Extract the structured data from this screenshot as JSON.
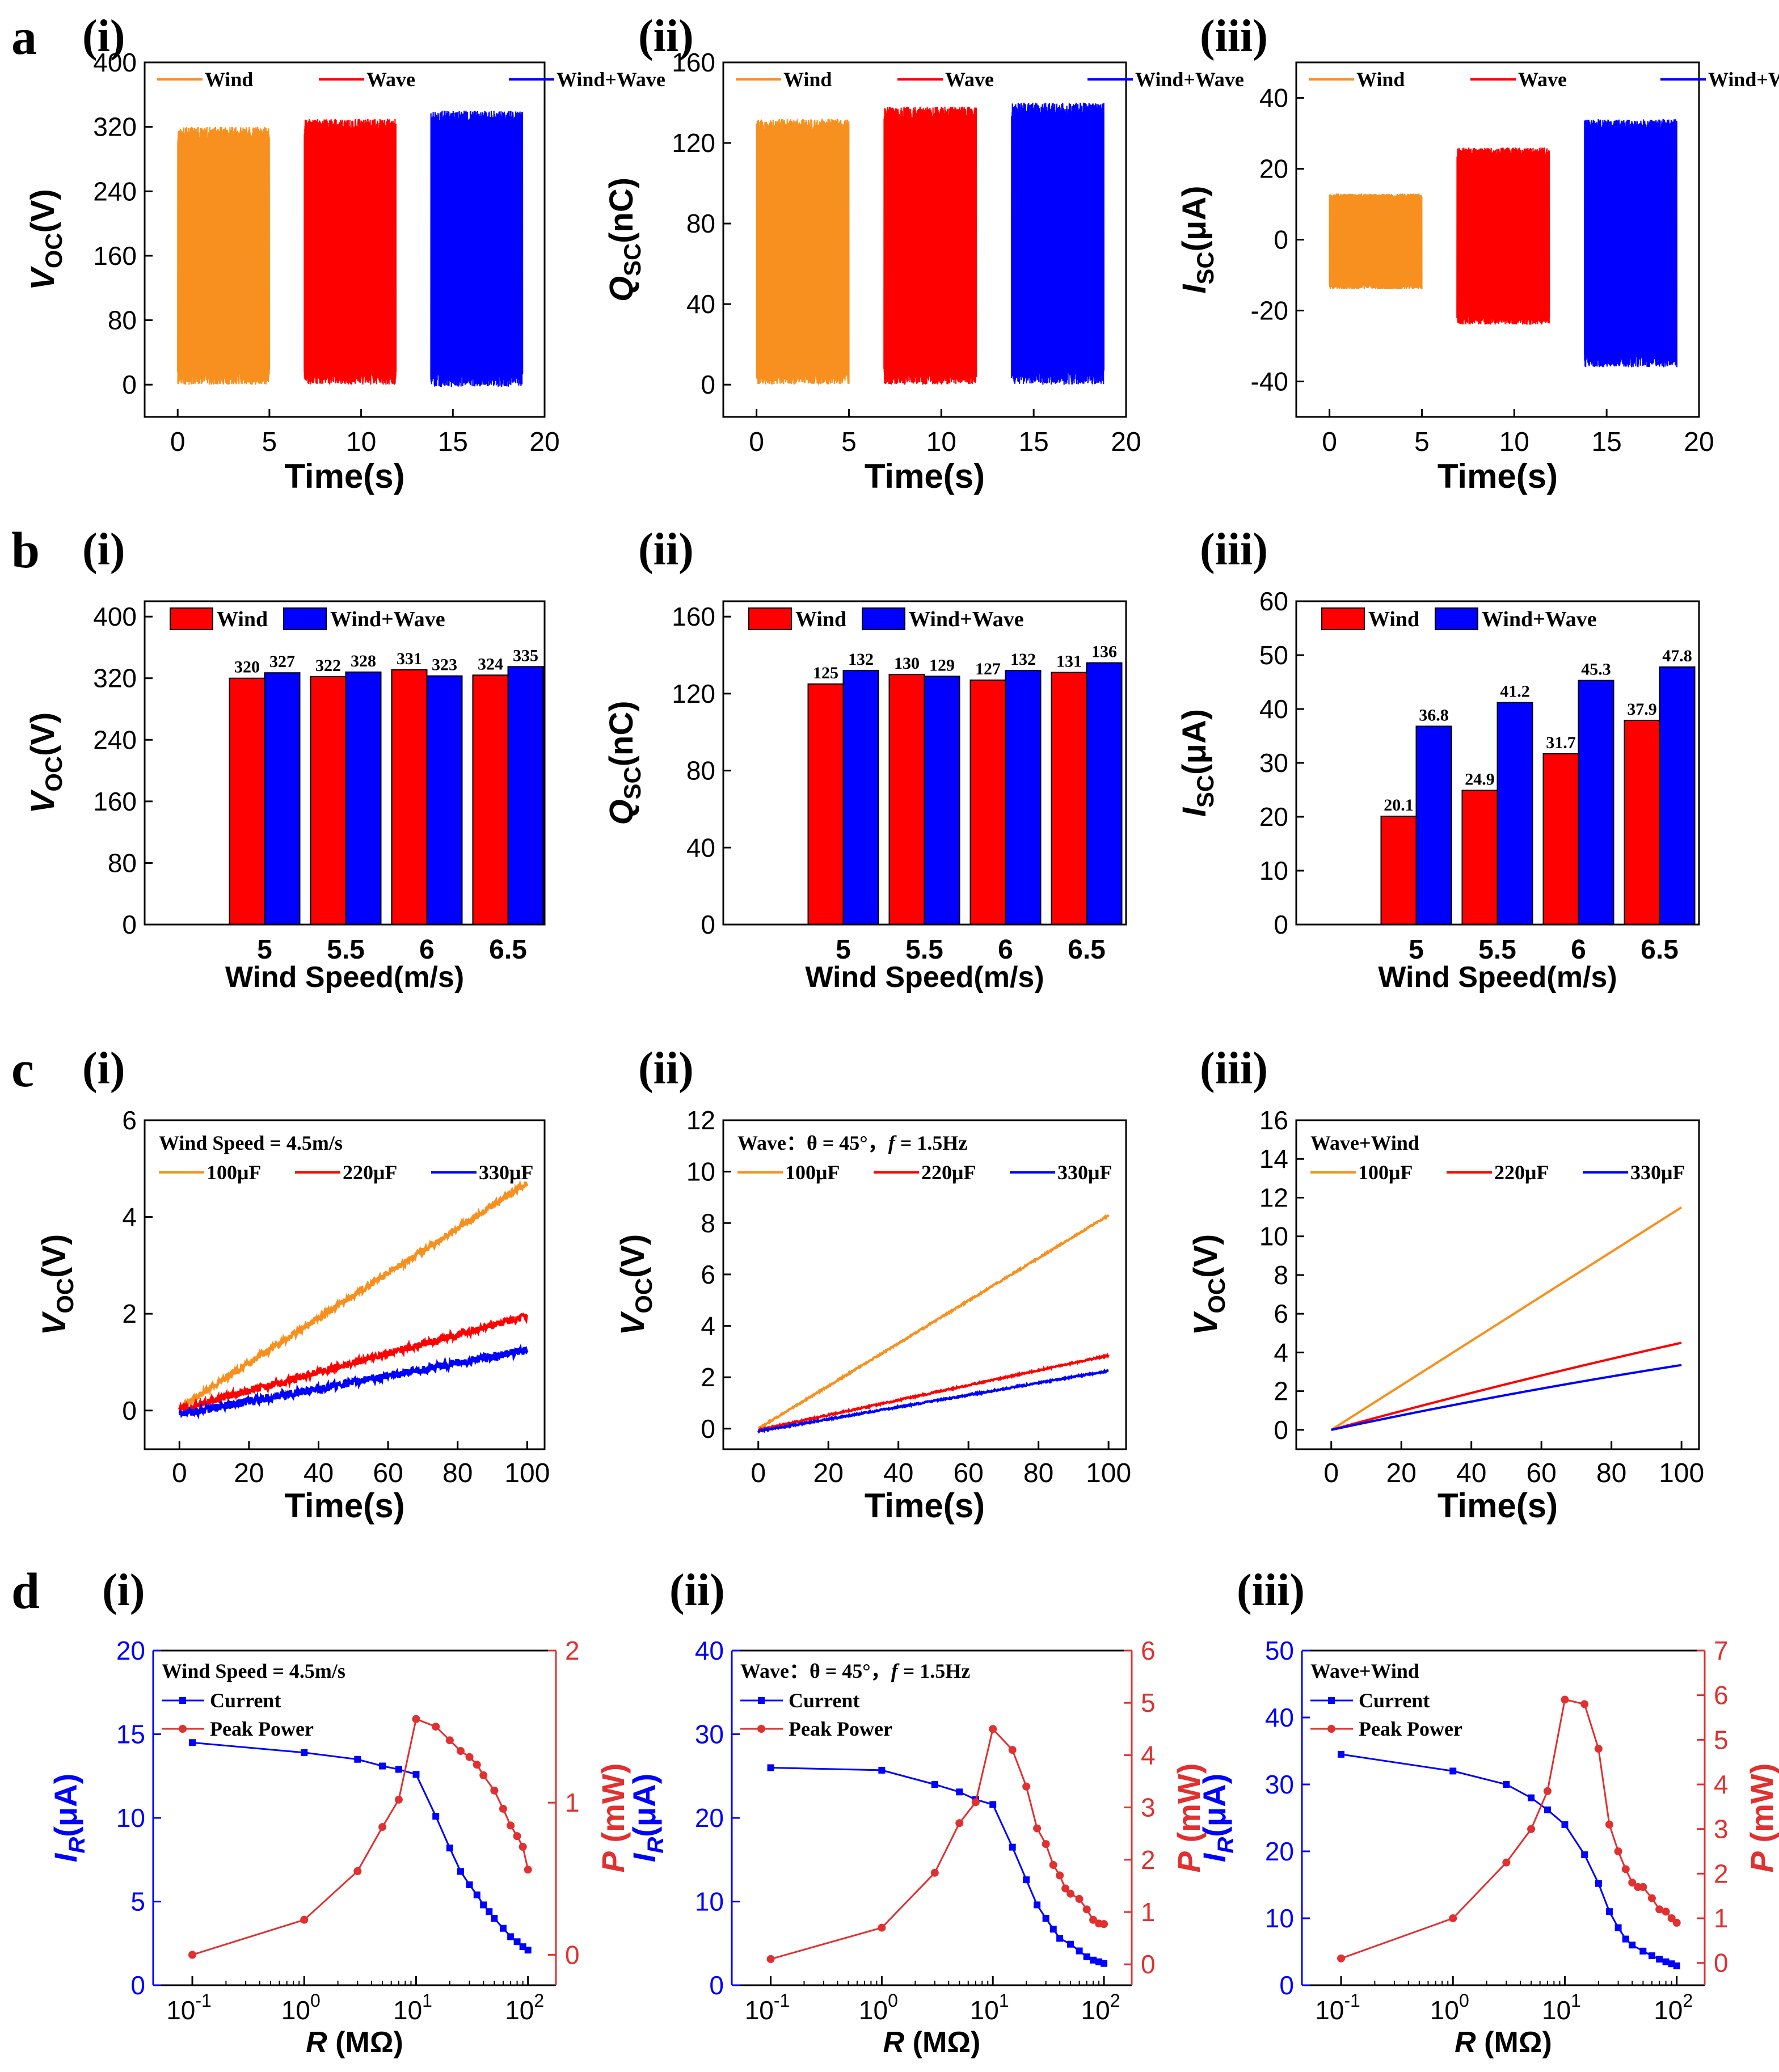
{
  "figure": {
    "panel_letters": [
      "a",
      "b",
      "c",
      "d"
    ],
    "sub_labels": [
      "(i)",
      "(ii)",
      "(iii)"
    ]
  },
  "colors": {
    "orange": "#F7901E",
    "red": "#FF0000",
    "blue": "#0000FF",
    "wind_bar": "#FF0000",
    "windwave_bar": "#0000FF",
    "current": "#0000FF",
    "power": "#E03030"
  },
  "chart_data": [
    {
      "id": "a-i",
      "type": "line",
      "title": "",
      "xlabel": "Time(s)",
      "ylabel": "V",
      "ylabel_sub": "OC",
      "ylabel_unit": "(V)",
      "xlim": [
        -1.8,
        20
      ],
      "ylim": [
        -40,
        400
      ],
      "xticks": [
        0,
        5,
        10,
        15,
        20
      ],
      "yticks": [
        0,
        80,
        160,
        240,
        320,
        400
      ],
      "legend": [
        "Wind",
        "Wave",
        "Wind+Wave"
      ],
      "series": [
        {
          "name": "Wind",
          "color": "orange",
          "t_start": 0,
          "t_end": 5,
          "min": 0,
          "max": 320
        },
        {
          "name": "Wave",
          "color": "red",
          "t_start": 6.9,
          "t_end": 11.9,
          "min": 0,
          "max": 330
        },
        {
          "name": "Wind+Wave",
          "color": "blue",
          "t_start": 13.8,
          "t_end": 18.8,
          "min": -3,
          "max": 340
        }
      ]
    },
    {
      "id": "a-ii",
      "type": "line",
      "xlabel": "Time(s)",
      "ylabel": "Q",
      "ylabel_sub": "SC",
      "ylabel_unit": "(nC)",
      "xlim": [
        -1.8,
        20
      ],
      "ylim": [
        -16,
        160
      ],
      "xticks": [
        0,
        5,
        10,
        15,
        20
      ],
      "yticks": [
        0,
        40,
        80,
        120,
        160
      ],
      "legend": [
        "Wind",
        "Wave",
        "Wind+Wave"
      ],
      "series": [
        {
          "name": "Wind",
          "color": "orange",
          "t_start": 0,
          "t_end": 5,
          "min": 0,
          "max": 132
        },
        {
          "name": "Wave",
          "color": "red",
          "t_start": 6.9,
          "t_end": 11.9,
          "min": 0,
          "max": 138
        },
        {
          "name": "Wind+Wave",
          "color": "blue",
          "t_start": 13.8,
          "t_end": 18.8,
          "min": 0,
          "max": 140
        }
      ]
    },
    {
      "id": "a-iii",
      "type": "line",
      "xlabel": "Time(s)",
      "ylabel": "I",
      "ylabel_sub": "SC",
      "ylabel_unit": "(μA)",
      "xlim": [
        -1.8,
        20
      ],
      "ylim": [
        -50,
        50
      ],
      "xticks": [
        0,
        5,
        10,
        15,
        20
      ],
      "yticks": [
        -40,
        -20,
        0,
        20,
        40
      ],
      "legend": [
        "Wind",
        "Wave",
        "Wind+Wave"
      ],
      "series": [
        {
          "name": "Wind",
          "color": "orange",
          "t_start": 0,
          "t_end": 5,
          "min": -14,
          "max": 13
        },
        {
          "name": "Wave",
          "color": "red",
          "t_start": 6.9,
          "t_end": 11.9,
          "min": -24,
          "max": 26
        },
        {
          "name": "Wind+Wave",
          "color": "blue",
          "t_start": 13.8,
          "t_end": 18.8,
          "min": -36,
          "max": 34
        }
      ]
    },
    {
      "id": "b-i",
      "type": "bar",
      "xlabel": "Wind Speed(m/s)",
      "ylabel": "V",
      "ylabel_sub": "OC",
      "ylabel_unit": "(V)",
      "ylim": [
        0,
        420
      ],
      "yticks": [
        0,
        80,
        160,
        240,
        320,
        400
      ],
      "categories": [
        "5",
        "5.5",
        "6",
        "6.5"
      ],
      "legend": [
        "Wind",
        "Wind+Wave"
      ],
      "series": [
        {
          "name": "Wind",
          "values": [
            320,
            322,
            331,
            324
          ]
        },
        {
          "name": "Wind+Wave",
          "values": [
            327,
            328,
            323,
            335
          ]
        }
      ]
    },
    {
      "id": "b-ii",
      "type": "bar",
      "xlabel": "Wind Speed(m/s)",
      "ylabel": "Q",
      "ylabel_sub": "SC",
      "ylabel_unit": "(nC)",
      "ylim": [
        0,
        168
      ],
      "yticks": [
        0,
        40,
        80,
        120,
        160
      ],
      "categories": [
        "5",
        "5.5",
        "6",
        "6.5"
      ],
      "legend": [
        "Wind",
        "Wind+Wave"
      ],
      "series": [
        {
          "name": "Wind",
          "values": [
            125,
            130,
            127,
            131
          ]
        },
        {
          "name": "Wind+Wave",
          "values": [
            132,
            129,
            132,
            136
          ]
        }
      ]
    },
    {
      "id": "b-iii",
      "type": "bar",
      "xlabel": "Wind Speed(m/s)",
      "ylabel": "I",
      "ylabel_sub": "SC",
      "ylabel_unit": "(μA)",
      "ylim": [
        0,
        60
      ],
      "yticks": [
        0,
        10,
        20,
        30,
        40,
        50,
        60
      ],
      "categories": [
        "5",
        "5.5",
        "6",
        "6.5"
      ],
      "legend": [
        "Wind",
        "Wind+Wave"
      ],
      "series": [
        {
          "name": "Wind",
          "values": [
            20.1,
            24.9,
            31.7,
            37.9
          ]
        },
        {
          "name": "Wind+Wave",
          "values": [
            36.8,
            41.2,
            45.3,
            47.8
          ]
        }
      ]
    },
    {
      "id": "c-i",
      "type": "line",
      "xlabel": "Time(s)",
      "ylabel": "V",
      "ylabel_sub": "OC",
      "ylabel_unit": "(V)",
      "xlim": [
        -10,
        105
      ],
      "ylim": [
        -0.8,
        6
      ],
      "xticks": [
        0,
        20,
        40,
        60,
        80,
        100
      ],
      "yticks": [
        0,
        2,
        4,
        6
      ],
      "annotation": "Wind Speed = 4.5m/s",
      "legend": [
        "100μF",
        "220μF",
        "330μF"
      ],
      "series": [
        {
          "name": "100μF",
          "color": "orange",
          "x": [
            0,
            100
          ],
          "y": [
            0.05,
            4.7
          ],
          "noise": 0.06
        },
        {
          "name": "220μF",
          "color": "red",
          "x": [
            0,
            100
          ],
          "y": [
            0.02,
            1.95
          ],
          "noise": 0.07
        },
        {
          "name": "330μF",
          "color": "blue",
          "x": [
            0,
            100
          ],
          "y": [
            -0.08,
            1.25
          ],
          "noise": 0.08
        }
      ]
    },
    {
      "id": "c-ii",
      "type": "line",
      "xlabel": "Time(s)",
      "ylabel": "V",
      "ylabel_sub": "OC",
      "ylabel_unit": "(V)",
      "xlim": [
        -10,
        105
      ],
      "ylim": [
        -0.8,
        12
      ],
      "xticks": [
        0,
        20,
        40,
        60,
        80,
        100
      ],
      "yticks": [
        0,
        2,
        4,
        6,
        8,
        10,
        12
      ],
      "annotation": "Wave：θ = 45°，",
      "annotation_f": "f",
      "annotation_tail": " = 1.5Hz",
      "legend": [
        "100μF",
        "220μF",
        "330μF"
      ],
      "series": [
        {
          "name": "100μF",
          "color": "orange",
          "x": [
            0,
            100
          ],
          "y": [
            0.0,
            8.3
          ],
          "noise": 0.03
        },
        {
          "name": "220μF",
          "color": "red",
          "x": [
            0,
            100
          ],
          "y": [
            -0.05,
            2.85
          ],
          "noise": 0.03
        },
        {
          "name": "330μF",
          "color": "blue",
          "x": [
            0,
            100
          ],
          "y": [
            -0.1,
            2.25
          ],
          "noise": 0.03
        }
      ]
    },
    {
      "id": "c-iii",
      "type": "line",
      "xlabel": "Time(s)",
      "ylabel": "V",
      "ylabel_sub": "OC",
      "ylabel_unit": "(V)",
      "xlim": [
        -10,
        105
      ],
      "ylim": [
        -1.0,
        16
      ],
      "xticks": [
        0,
        20,
        40,
        60,
        80,
        100
      ],
      "yticks": [
        0,
        2,
        4,
        6,
        8,
        10,
        12,
        14,
        16
      ],
      "annotation": "Wave+Wind",
      "legend": [
        "100μF",
        "220μF",
        "330μF"
      ],
      "series": [
        {
          "name": "100μF",
          "color": "orange",
          "x": [
            0,
            100
          ],
          "y": [
            0.0,
            11.5
          ],
          "noise": 0.0
        },
        {
          "name": "220μF",
          "color": "red",
          "x": [
            0,
            100
          ],
          "y": [
            0.0,
            4.5
          ],
          "noise": 0.0,
          "curve": 0.1
        },
        {
          "name": "330μF",
          "color": "blue",
          "x": [
            0,
            100
          ],
          "y": [
            0.0,
            3.35
          ],
          "noise": 0.0,
          "curve": 0.15
        }
      ]
    },
    {
      "id": "d-i",
      "type": "scatter",
      "xlabel": "R (MΩ)",
      "ylabel": "I",
      "ylabel_sub": "R",
      "ylabel_unit": "(μA)",
      "y2label": "P (mW)",
      "xlim_log": [
        -1.35,
        2.25
      ],
      "ylim": [
        0,
        20
      ],
      "y2lim": [
        -0.2,
        2
      ],
      "xticks_exp": [
        "-1",
        "0",
        "1",
        "2"
      ],
      "yticks": [
        0,
        5,
        10,
        15,
        20
      ],
      "y2ticks": [
        0,
        1,
        2
      ],
      "annotation": "Wind Speed = 4.5m/s",
      "legend": [
        "Current",
        "Peak Power"
      ],
      "series": [
        {
          "name": "Current",
          "x": [
            0.1,
            1,
            3,
            5,
            7,
            10,
            15,
            20,
            25,
            30,
            35,
            40,
            45,
            50,
            60,
            70,
            80,
            90,
            100
          ],
          "y": [
            14.5,
            13.9,
            13.5,
            13.1,
            12.9,
            12.6,
            10.1,
            8.2,
            6.8,
            6.0,
            5.4,
            4.8,
            4.4,
            4.0,
            3.4,
            2.9,
            2.6,
            2.3,
            2.1
          ]
        },
        {
          "name": "Peak Power",
          "x": [
            0.1,
            1,
            3,
            5,
            7,
            10,
            15,
            20,
            25,
            30,
            35,
            40,
            50,
            60,
            70,
            80,
            90,
            100
          ],
          "y": [
            0.0,
            0.23,
            0.55,
            0.84,
            1.02,
            1.55,
            1.5,
            1.41,
            1.34,
            1.3,
            1.25,
            1.18,
            1.08,
            0.96,
            0.85,
            0.78,
            0.71,
            0.56
          ]
        }
      ]
    },
    {
      "id": "d-ii",
      "type": "scatter",
      "xlabel": "R (MΩ)",
      "ylabel": "I",
      "ylabel_sub": "R",
      "ylabel_unit": "(μA)",
      "y2label": "P (mW)",
      "xlim_log": [
        -1.35,
        2.25
      ],
      "ylim": [
        0,
        40
      ],
      "y2lim": [
        -0.4,
        6
      ],
      "xticks_exp": [
        "-1",
        "0",
        "1",
        "2"
      ],
      "yticks": [
        0,
        10,
        20,
        30,
        40
      ],
      "y2ticks": [
        0,
        1,
        2,
        3,
        4,
        5,
        6
      ],
      "annotation": "Wave：θ = 45°，",
      "annotation_f": "f",
      "annotation_tail": " = 1.5Hz",
      "legend": [
        "Current",
        "Peak Power"
      ],
      "series": [
        {
          "name": "Current",
          "x": [
            0.1,
            1,
            3,
            5,
            7,
            10,
            15,
            20,
            25,
            30,
            35,
            40,
            50,
            60,
            70,
            80,
            90,
            100
          ],
          "y": [
            26.0,
            25.7,
            24.0,
            23.1,
            22.2,
            21.6,
            16.5,
            12.6,
            9.6,
            8.0,
            6.7,
            5.6,
            4.9,
            4.1,
            3.4,
            3.0,
            2.8,
            2.6
          ]
        },
        {
          "name": "Peak Power",
          "x": [
            0.1,
            1,
            3,
            5,
            7,
            10,
            15,
            20,
            25,
            30,
            35,
            40,
            45,
            50,
            60,
            70,
            80,
            90,
            100
          ],
          "y": [
            0.1,
            0.7,
            1.75,
            2.7,
            3.1,
            4.5,
            4.1,
            3.4,
            2.6,
            2.3,
            1.9,
            1.7,
            1.45,
            1.35,
            1.25,
            1.05,
            0.85,
            0.78,
            0.77
          ]
        }
      ]
    },
    {
      "id": "d-iii",
      "type": "scatter",
      "xlabel": "R (MΩ)",
      "ylabel": "I",
      "ylabel_sub": "R",
      "ylabel_unit": "(μA)",
      "y2label": "P (mW)",
      "xlim_log": [
        -1.35,
        2.25
      ],
      "ylim": [
        0,
        50
      ],
      "y2lim": [
        -0.5,
        7
      ],
      "xticks_exp": [
        "-1",
        "0",
        "1",
        "2"
      ],
      "yticks": [
        0,
        10,
        20,
        30,
        40,
        50
      ],
      "y2ticks": [
        0,
        1,
        2,
        3,
        4,
        5,
        6,
        7
      ],
      "annotation": "Wave+Wind",
      "legend": [
        "Current",
        "Peak Power"
      ],
      "series": [
        {
          "name": "Current",
          "x": [
            0.1,
            1,
            3,
            5,
            7,
            10,
            15,
            20,
            25,
            30,
            35,
            40,
            50,
            60,
            70,
            80,
            90,
            100
          ],
          "y": [
            34.5,
            32.0,
            30.0,
            28.0,
            26.2,
            24.0,
            19.5,
            15.2,
            11.0,
            8.6,
            6.9,
            6.0,
            5.1,
            4.4,
            3.9,
            3.5,
            3.2,
            2.9
          ]
        },
        {
          "name": "Peak Power",
          "x": [
            0.1,
            1,
            3,
            5,
            7,
            10,
            15,
            20,
            25,
            30,
            35,
            40,
            45,
            50,
            60,
            70,
            80,
            90,
            100
          ],
          "y": [
            0.1,
            1.0,
            2.25,
            3.0,
            3.85,
            5.9,
            5.8,
            4.8,
            3.1,
            2.5,
            2.1,
            1.8,
            1.7,
            1.7,
            1.45,
            1.2,
            1.15,
            1.0,
            0.9
          ]
        }
      ]
    }
  ]
}
